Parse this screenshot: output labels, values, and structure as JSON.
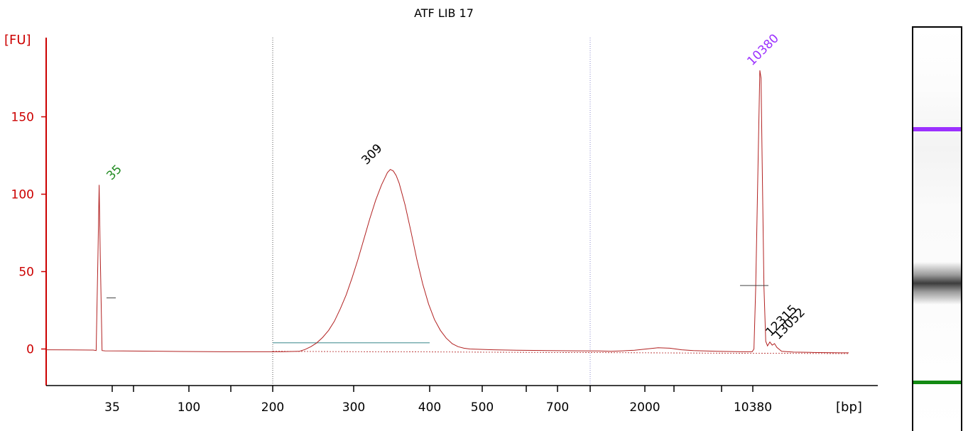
{
  "chart_data": {
    "type": "line",
    "title": "ATF LIB 17",
    "ylabel": "[FU]",
    "xlabel": "[bp]",
    "ylim": [
      -22,
      200
    ],
    "yticks": [
      0,
      50,
      100,
      150
    ],
    "xtick_labels": [
      "35",
      "100",
      "200",
      "300",
      "400",
      "500",
      "700",
      "2000",
      "10380"
    ],
    "x_scale": "ladder (non-linear bp)",
    "colors": {
      "axis": "#cc0000",
      "trace": "#b22222",
      "lower_marker": "#228b22",
      "upper_marker": "#9b30ff",
      "peak_label": "#000000",
      "region_line": "#5f9ea0"
    },
    "peaks": [
      {
        "label": "35",
        "size_bp": 35,
        "fu": 106,
        "role": "lower marker"
      },
      {
        "label": "309",
        "size_bp": 309,
        "fu": 116,
        "role": "sample"
      },
      {
        "label": "10380",
        "size_bp": 10380,
        "fu": 180,
        "role": "upper marker"
      },
      {
        "label": "12315",
        "size_bp": 12315,
        "fu": 5,
        "role": "sample"
      },
      {
        "label": "13052",
        "size_bp": 13052,
        "fu": 3,
        "role": "sample"
      }
    ],
    "region": {
      "from_bp": 200,
      "to_bp": 400,
      "baseline_fu": 4
    },
    "dotted_lines_bp": [
      200,
      1000
    ],
    "trace_points": [
      [
        0,
        -0.5
      ],
      [
        40,
        -0.6
      ],
      [
        80,
        -0.7
      ],
      [
        85,
        -1
      ],
      [
        88,
        60
      ],
      [
        90,
        106
      ],
      [
        92,
        60
      ],
      [
        95,
        -1
      ],
      [
        100,
        -1.2
      ],
      [
        130,
        -1.3
      ],
      [
        200,
        -1.5
      ],
      [
        300,
        -1.8
      ],
      [
        400,
        -1.8
      ],
      [
        430,
        -1.5
      ],
      [
        440,
        -0.3
      ],
      [
        450,
        1.5
      ],
      [
        460,
        4
      ],
      [
        470,
        7.5
      ],
      [
        480,
        12
      ],
      [
        490,
        18
      ],
      [
        500,
        26
      ],
      [
        510,
        35
      ],
      [
        520,
        46
      ],
      [
        530,
        58
      ],
      [
        540,
        71
      ],
      [
        550,
        84
      ],
      [
        560,
        96
      ],
      [
        570,
        106
      ],
      [
        575,
        110
      ],
      [
        580,
        114
      ],
      [
        585,
        116
      ],
      [
        590,
        115
      ],
      [
        595,
        112
      ],
      [
        600,
        107
      ],
      [
        610,
        93
      ],
      [
        620,
        76
      ],
      [
        630,
        58
      ],
      [
        640,
        42
      ],
      [
        650,
        29
      ],
      [
        660,
        19
      ],
      [
        670,
        12
      ],
      [
        680,
        7
      ],
      [
        690,
        3.5
      ],
      [
        700,
        1.5
      ],
      [
        710,
        0.5
      ],
      [
        720,
        0
      ],
      [
        760,
        -0.5
      ],
      [
        800,
        -0.8
      ],
      [
        850,
        -1
      ],
      [
        900,
        -1.2
      ],
      [
        940,
        -1.3
      ],
      [
        960,
        -1.5
      ],
      [
        980,
        -1.2
      ],
      [
        1000,
        -0.8
      ],
      [
        1020,
        0
      ],
      [
        1040,
        0.8
      ],
      [
        1060,
        0.5
      ],
      [
        1080,
        -0.5
      ],
      [
        1100,
        -1
      ],
      [
        1140,
        -1.5
      ],
      [
        1180,
        -1.8
      ],
      [
        1200,
        -1.8
      ],
      [
        1203,
        0
      ],
      [
        1206,
        40
      ],
      [
        1210,
        120
      ],
      [
        1213,
        180
      ],
      [
        1215,
        175
      ],
      [
        1217,
        120
      ],
      [
        1220,
        40
      ],
      [
        1223,
        5
      ],
      [
        1226,
        2
      ],
      [
        1230,
        4.5
      ],
      [
        1234,
        2.5
      ],
      [
        1238,
        3.5
      ],
      [
        1242,
        1
      ],
      [
        1250,
        -1.5
      ],
      [
        1270,
        -2
      ],
      [
        1300,
        -2.2
      ],
      [
        1350,
        -2.5
      ],
      [
        1364,
        -2.5
      ]
    ]
  }
}
